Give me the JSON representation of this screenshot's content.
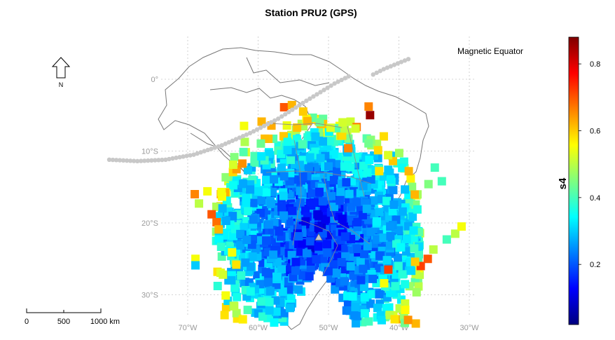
{
  "title": "Station PRU2 (GPS)",
  "north_arrow_label": "N",
  "magnetic_equator_label": "Magnetic Equator",
  "station_marker": "triangle-icon",
  "colorbar": {
    "label": "s4",
    "ticks": [
      "0.8",
      "0.6",
      "0.4",
      "0.2"
    ],
    "tick_values": [
      0.8,
      0.6,
      0.4,
      0.2
    ],
    "range": [
      0.02,
      0.88
    ],
    "colors": [
      "#00007f",
      "#0000ff",
      "#007fff",
      "#00ffff",
      "#7fff7f",
      "#ffff00",
      "#ff7f00",
      "#ff0000",
      "#7f0000"
    ]
  },
  "scale_bar": {
    "labels": [
      "0",
      "500",
      "1000 km"
    ]
  },
  "x_ticks": [
    {
      "label": "70°W",
      "lon": -70
    },
    {
      "label": "60°W",
      "lon": -60
    },
    {
      "label": "50°W",
      "lon": -50
    },
    {
      "label": "40°W",
      "lon": -40
    },
    {
      "label": "30°W",
      "lon": -30
    }
  ],
  "y_ticks": [
    {
      "label": "0°",
      "lat": 0
    },
    {
      "label": "10°S",
      "lat": -10
    },
    {
      "label": "20°S",
      "lat": -20
    },
    {
      "label": "30°S",
      "lat": -30
    }
  ],
  "map_extent": {
    "lon": [
      -80,
      -30
    ],
    "lat": [
      -33,
      5
    ]
  },
  "chart_data": {
    "type": "scatter",
    "title": "Station PRU2 (GPS)",
    "xlabel": "",
    "ylabel": "",
    "value_name": "s4",
    "station": {
      "lon": -51.4,
      "lat": -22.1
    },
    "magnetic_equator": [
      [
        -80,
        -11.2
      ],
      [
        -75,
        -11.4
      ],
      [
        -70,
        -11.2
      ],
      [
        -65,
        -10.5
      ],
      [
        -60,
        -9.2
      ],
      [
        -55,
        -7.5
      ],
      [
        -50,
        -5.5
      ],
      [
        -45,
        -3.0
      ],
      [
        -40,
        -0.6
      ],
      [
        -35,
        1.4
      ],
      [
        -30,
        3.0
      ]
    ],
    "points": [
      [
        -44.1,
        -5.0,
        0.86
      ],
      [
        -56.3,
        -3.9,
        0.7
      ],
      [
        -55.2,
        -3.6,
        0.62
      ],
      [
        -44.3,
        -3.8,
        0.66
      ],
      [
        -53.6,
        -4.5,
        0.6
      ],
      [
        -59.5,
        -5.9,
        0.62
      ],
      [
        -62.0,
        -6.5,
        0.55
      ],
      [
        -48.0,
        -6.0,
        0.52
      ],
      [
        -47.2,
        -9.6,
        0.66
      ],
      [
        -42.8,
        -12.8,
        0.58
      ],
      [
        -38.6,
        -12.8,
        0.62
      ],
      [
        -34.9,
        -12.3,
        0.4
      ],
      [
        -35.8,
        -14.6,
        0.45
      ],
      [
        -33.9,
        -14.2,
        0.4
      ],
      [
        -69.0,
        -16.0,
        0.66
      ],
      [
        -68.4,
        -17.3,
        0.5
      ],
      [
        -67.2,
        -15.6,
        0.55
      ],
      [
        -65.2,
        -15.7,
        0.55
      ],
      [
        -66.6,
        -18.8,
        0.7
      ],
      [
        -65.9,
        -19.9,
        0.68
      ],
      [
        -65.6,
        -20.9,
        0.62
      ],
      [
        -63.7,
        -24.1,
        0.55
      ],
      [
        -63.1,
        -25.8,
        0.58
      ],
      [
        -65.0,
        -27.2,
        0.52
      ],
      [
        -64.6,
        -30.1,
        0.55
      ],
      [
        -63.4,
        -31.6,
        0.5
      ],
      [
        -41.5,
        -26.5,
        0.72
      ],
      [
        -42.1,
        -28.4,
        0.55
      ],
      [
        -39.9,
        -31.9,
        0.5
      ],
      [
        -39.1,
        -32.1,
        0.56
      ],
      [
        -37.6,
        -34.0,
        0.62
      ],
      [
        -41.3,
        -32.8,
        0.5
      ],
      [
        -40.6,
        -33.4,
        0.58
      ],
      [
        -38.7,
        -33.5,
        0.65
      ],
      [
        -68.9,
        -25.0,
        0.55
      ],
      [
        -68.9,
        -25.9,
        0.3
      ],
      [
        -36.9,
        -26.0,
        0.72
      ],
      [
        -35.1,
        -23.7,
        0.5
      ],
      [
        -37.7,
        -25.4,
        0.6
      ],
      [
        -33.2,
        -22.3,
        0.4
      ],
      [
        -32.0,
        -21.5,
        0.5
      ],
      [
        -31.1,
        -20.5,
        0.55
      ],
      [
        -35.9,
        -25.0,
        0.7
      ]
    ]
  }
}
